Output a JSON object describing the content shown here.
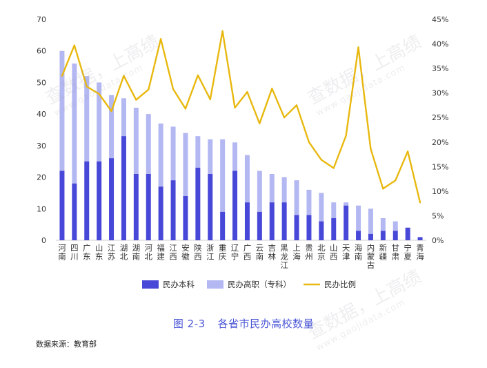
{
  "figure": {
    "caption_number": "图 2-3",
    "caption_title": "各省市民办高校数量",
    "source": "数据来源：教育部"
  },
  "watermark": {
    "text": "查数据，上高绩",
    "url": "www.gaojidata.com"
  },
  "chart_data": {
    "type": "bar",
    "stacked": true,
    "categories": [
      "河南",
      "四川",
      "广东",
      "山东",
      "江苏",
      "湖北",
      "湖南",
      "河北",
      "福建",
      "江西",
      "安徽",
      "陕西",
      "浙江",
      "重庆",
      "辽宁",
      "广西",
      "云南",
      "吉林",
      "黑龙江",
      "上海",
      "贵州",
      "北京",
      "山西",
      "天津",
      "海南",
      "内蒙古",
      "新疆",
      "甘肃",
      "宁夏",
      "青海"
    ],
    "series": [
      {
        "name": "民办本科",
        "type": "bar",
        "color": "#4848d8",
        "values": [
          22,
          18,
          25,
          25,
          26,
          33,
          21,
          21,
          17,
          19,
          14,
          23,
          21,
          9,
          22,
          12,
          9,
          12,
          12,
          8,
          8,
          6,
          7,
          11,
          3,
          2,
          3,
          3,
          4,
          1
        ]
      },
      {
        "name": "民办高职（专科）",
        "type": "bar",
        "color": "#b4b8f2",
        "values": [
          38,
          38,
          27,
          25,
          20,
          12,
          21,
          19,
          20,
          17,
          20,
          10,
          11,
          23,
          9,
          15,
          13,
          9,
          8,
          11,
          8,
          9,
          5,
          1,
          8,
          8,
          4,
          3,
          0,
          0
        ]
      },
      {
        "name": "民办比例",
        "type": "line",
        "axis": "right",
        "color": "#e8b80e",
        "values": [
          33.5,
          39.7,
          31.3,
          29.8,
          26.3,
          33.5,
          28.6,
          30.7,
          41.0,
          30.8,
          26.8,
          33.6,
          28.7,
          42.6,
          27.0,
          30.2,
          23.8,
          30.9,
          25.0,
          27.5,
          20.0,
          16.4,
          14.7,
          21.3,
          39.3,
          18.6,
          10.5,
          12.2,
          18.1,
          7.7
        ]
      }
    ],
    "y_left": {
      "min": 0,
      "max": 70,
      "ticks": [
        0,
        10,
        20,
        30,
        40,
        50,
        60,
        70
      ]
    },
    "y_right": {
      "min": 0,
      "max": 45,
      "ticks": [
        "0%",
        "5%",
        "10%",
        "15%",
        "20%",
        "25%",
        "30%",
        "35%",
        "40%",
        "45%"
      ]
    },
    "grid": false,
    "legend_position": "bottom"
  }
}
